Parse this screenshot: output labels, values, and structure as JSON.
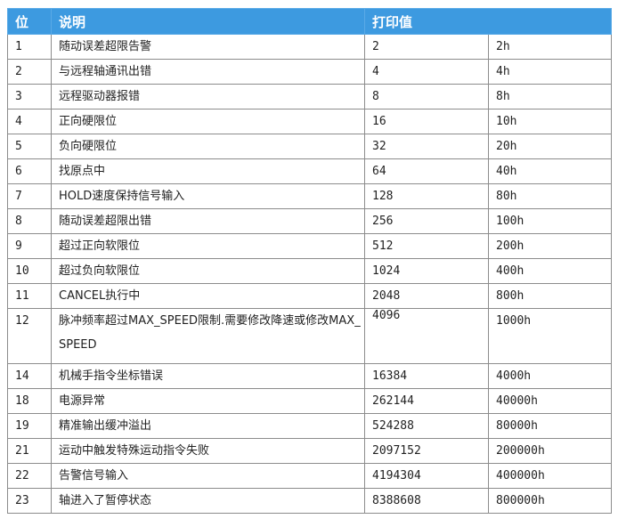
{
  "header": {
    "bit": "位",
    "desc": "说明",
    "print": "打印值"
  },
  "rows": [
    {
      "bit": "1",
      "desc": "随动误差超限告警",
      "dec": "2",
      "hex": "2h"
    },
    {
      "bit": "2",
      "desc": "与远程轴通讯出错",
      "dec": "4",
      "hex": "4h"
    },
    {
      "bit": "3",
      "desc": "远程驱动器报错",
      "dec": "8",
      "hex": "8h"
    },
    {
      "bit": "4",
      "desc": "正向硬限位",
      "dec": "16",
      "hex": "10h"
    },
    {
      "bit": "5",
      "desc": "负向硬限位",
      "dec": "32",
      "hex": "20h"
    },
    {
      "bit": "6",
      "desc": "找原点中",
      "dec": "64",
      "hex": "40h"
    },
    {
      "bit": "7",
      "desc": "HOLD速度保持信号输入",
      "dec": "128",
      "hex": "80h"
    },
    {
      "bit": "8",
      "desc": "随动误差超限出错",
      "dec": "256",
      "hex": "100h"
    },
    {
      "bit": "9",
      "desc": "超过正向软限位",
      "dec": "512",
      "hex": "200h"
    },
    {
      "bit": "10",
      "desc": "超过负向软限位",
      "dec": "1024",
      "hex": "400h"
    },
    {
      "bit": "11",
      "desc": "CANCEL执行中",
      "dec": "2048",
      "hex": "800h"
    },
    {
      "bit": "12",
      "desc": "脉冲频率超过MAX_SPEED限制.需要修改降速或修改MAX_SPEED",
      "dec": "4096",
      "hex": "1000h"
    },
    {
      "bit": "14",
      "desc": "机械手指令坐标错误",
      "dec": "16384",
      "hex": "4000h"
    },
    {
      "bit": "18",
      "desc": "电源异常",
      "dec": "262144",
      "hex": "40000h"
    },
    {
      "bit": "19",
      "desc": "精准输出缓冲溢出",
      "dec": "524288",
      "hex": "80000h"
    },
    {
      "bit": "21",
      "desc": "运动中触发特殊运动指令失败",
      "dec": "2097152",
      "hex": "200000h"
    },
    {
      "bit": "22",
      "desc": "告警信号输入",
      "dec": "4194304",
      "hex": "400000h"
    },
    {
      "bit": "23",
      "desc": "轴进入了暂停状态",
      "dec": "8388608",
      "hex": "800000h"
    }
  ]
}
